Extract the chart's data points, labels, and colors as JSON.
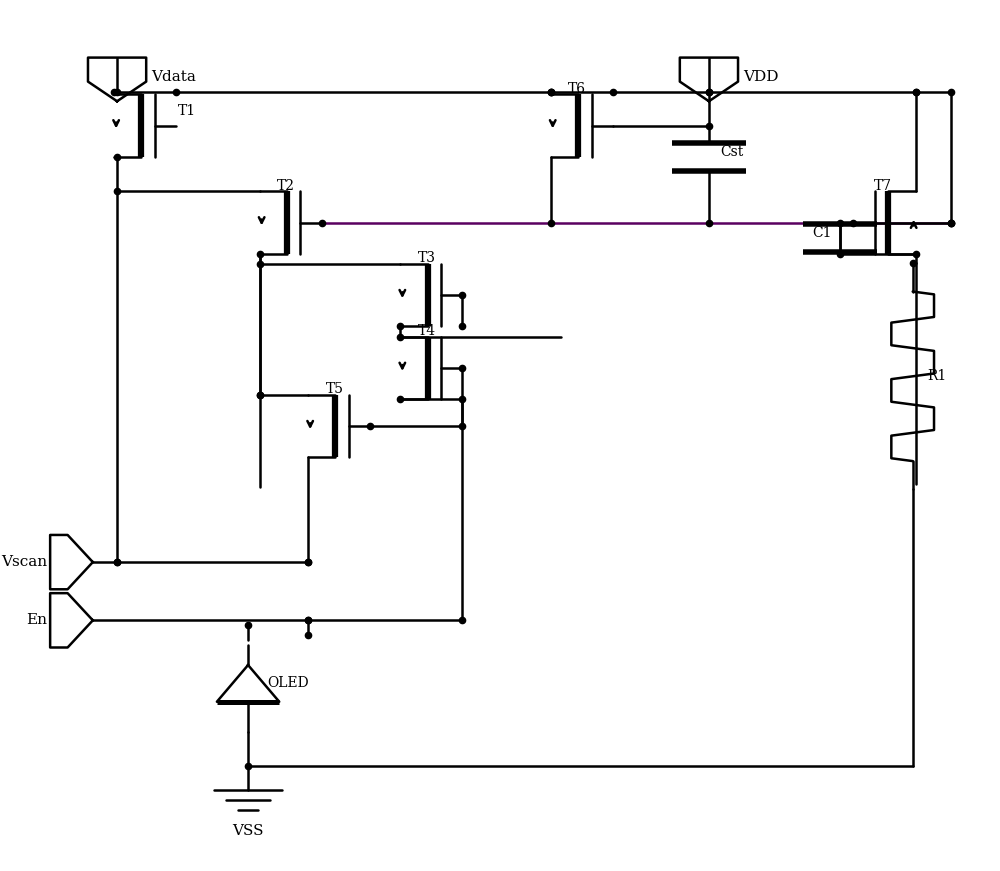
{
  "bg_color": "#ffffff",
  "line_color": "#000000",
  "purple_color": "#5a0060",
  "line_width": 1.8,
  "fig_width": 10.0,
  "fig_height": 8.71,
  "dpi": 100,
  "labels": {
    "vdata": "Vdata",
    "vdd": "VDD",
    "vss": "VSS",
    "vscan": "Vscan",
    "en": "En",
    "oled": "OLED",
    "t1": "T1",
    "t2": "T2",
    "t3": "T3",
    "t4": "T4",
    "t5": "T5",
    "t6": "T6",
    "t7": "T7",
    "cst": "Cst",
    "c1": "C1",
    "r1": "R1"
  }
}
